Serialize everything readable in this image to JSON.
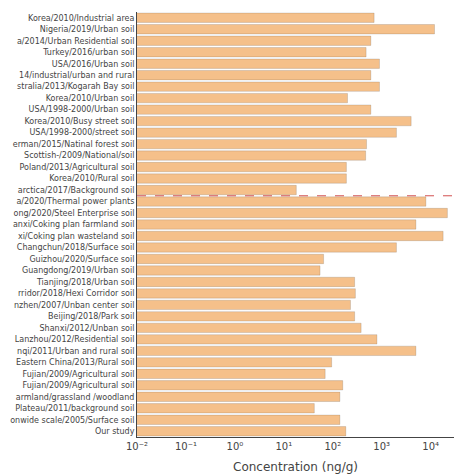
{
  "chart_data": {
    "type": "bar",
    "orientation": "horizontal",
    "log": "x",
    "grid": false,
    "xlabel": "Concentration (ng/g)",
    "color": "#f5c08a",
    "categories": [
      "Korea/2010/Industrial area",
      "Nigeria/2019/Urban soil",
      "a/2014/Urban Residential soil",
      "Turkey/2016/urban soil",
      "USA/2016/Urban soil",
      "14/industrial/urban and rural",
      "stralia/2013/Kogarah Bay soil",
      "Korea/2010/Urban soil",
      "USA/1998-2000/Urban soil",
      "Korea/2010/Busy street soil",
      "USA/1998-2000/street soil",
      "erman/2015/Natinal forest soil",
      "Scottish-/2009/National/soil",
      "Poland/2013/Agricultural soil",
      "Korea/2010/Rural soil",
      "arctica/2017/Background soil",
      "a/2020/Thermal power plants",
      "ong/2020/Steel Enterprise soil",
      "anxi/Coking plan farmland soil",
      "xi/Coking plan wasteland soil",
      "Changchun/2018/Surface soil",
      "Guizhou/2020/Surface soil",
      "Guangdong/2019/Urban soil",
      "Tianjing/2018/Urban soil",
      "rridor/2018/Hexi Corridor soil",
      "nzhen/2007/Unban center soil",
      "Beijing/2018/Park soil",
      "Shanxi/2012/Unban soil",
      "Lanzhou/2012/Residential soil",
      "nqi/2011/Urban and rural soil",
      "Eastern China/2013/Rural soil",
      "Fujian/2009/Agricultural soil",
      "Fujian/2009/Agricultural soil",
      "armland/grassland /woodland",
      "Plateau/2011/background soil",
      "onwide scale/2005/Surface soil",
      "Our study"
    ],
    "values": [
      700,
      12000,
      600,
      480,
      900,
      600,
      900,
      200,
      600,
      4000,
      2000,
      490,
      470,
      190,
      190,
      18,
      8000,
      22000,
      5000,
      18000,
      2000,
      65,
      55,
      280,
      290,
      230,
      280,
      380,
      800,
      5000,
      95,
      70,
      160,
      140,
      42,
      140,
      185
    ],
    "xlim": [
      0.01,
      30000
    ],
    "xticks": [
      {
        "value": 0.01,
        "label": "10⁻²"
      },
      {
        "value": 0.1,
        "label": "10⁻¹"
      },
      {
        "value": 1,
        "label": "10⁰"
      },
      {
        "value": 10,
        "label": "10¹"
      },
      {
        "value": 100,
        "label": "10²"
      },
      {
        "value": 1000,
        "label": "10³"
      },
      {
        "value": 10000,
        "label": "10⁴"
      }
    ],
    "dividers": [
      {
        "after": "arctica/2017/Background soil",
        "color": "#cc3333",
        "line_style": "dashed"
      }
    ]
  }
}
